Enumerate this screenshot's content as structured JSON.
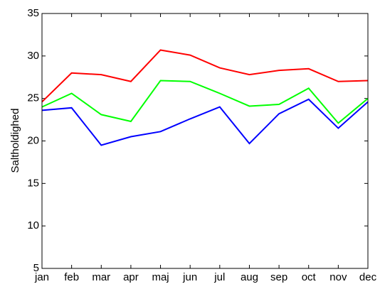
{
  "chart_data": {
    "type": "line",
    "y_label": "Saltholdighed",
    "categories": [
      "jan",
      "feb",
      "mar",
      "apr",
      "maj",
      "jun",
      "jul",
      "aug",
      "sep",
      "oct",
      "nov",
      "dec"
    ],
    "series": [
      {
        "color": "#ff0000",
        "values": [
          24.6,
          28.0,
          27.8,
          27.0,
          30.7,
          30.1,
          28.6,
          27.8,
          28.3,
          28.5,
          27.0,
          27.1
        ]
      },
      {
        "color": "#00ff00",
        "values": [
          24.0,
          25.6,
          23.1,
          22.3,
          27.1,
          27.0,
          25.6,
          24.1,
          24.3,
          26.2,
          22.1,
          25.0
        ]
      },
      {
        "color": "#0000ff",
        "values": [
          23.6,
          23.9,
          19.5,
          20.5,
          21.1,
          22.6,
          24.0,
          19.7,
          23.2,
          24.9,
          21.5,
          24.6
        ]
      }
    ],
    "ylim": [
      5,
      35
    ],
    "yticks": [
      5,
      10,
      15,
      20,
      25,
      30,
      35
    ],
    "grid": false
  }
}
